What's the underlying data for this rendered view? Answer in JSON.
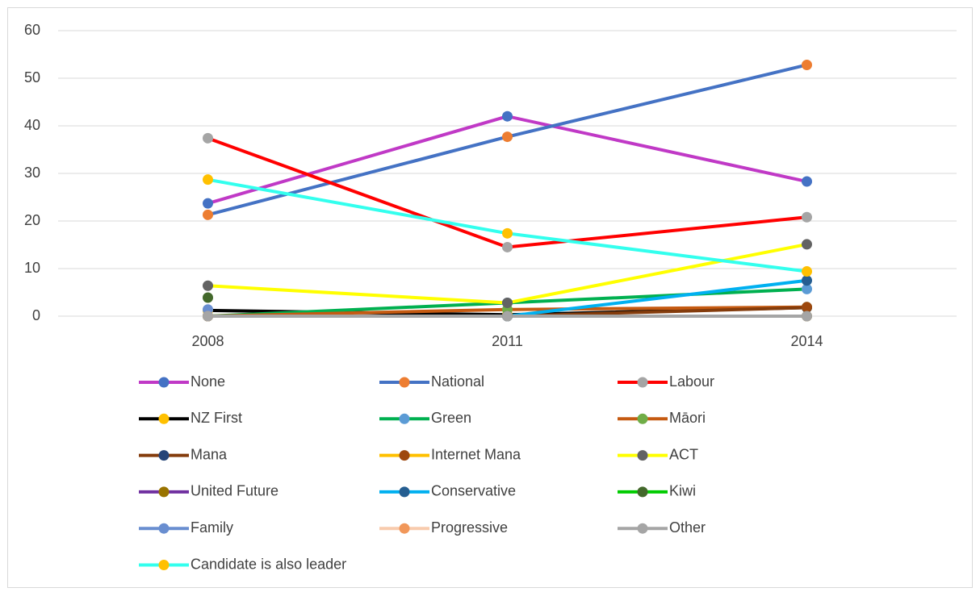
{
  "chart_data": {
    "type": "line",
    "categories": [
      "2008",
      "2011",
      "2014"
    ],
    "ylim": [
      0,
      60
    ],
    "yticks": [
      0,
      10,
      20,
      30,
      40,
      50,
      60
    ],
    "grid": true,
    "legend": "bottom",
    "series": [
      {
        "name": "None",
        "color": "#c039c6",
        "marker_color": "#4472c4",
        "values": [
          23.7,
          42.0,
          28.3
        ]
      },
      {
        "name": "National",
        "color": "#4472c4",
        "marker_color": "#ed7d31",
        "values": [
          21.3,
          37.7,
          52.8
        ]
      },
      {
        "name": "Labour",
        "color": "#ff0000",
        "marker_color": "#a5a5a5",
        "values": [
          37.4,
          14.5,
          20.8
        ]
      },
      {
        "name": "NZ First",
        "color": "#000000",
        "marker_color": "#ffc000",
        "values": [
          1.2,
          0.3,
          1.8
        ]
      },
      {
        "name": "Green",
        "color": "#00b050",
        "marker_color": "#5b9bd5",
        "values": [
          0,
          2.8,
          5.7
        ]
      },
      {
        "name": "Māori",
        "color": "#c55a11",
        "marker_color": "#70ad47",
        "values": [
          0,
          1.4,
          1.9
        ]
      },
      {
        "name": "Mana",
        "color": "#843c0c",
        "marker_color": "#264478",
        "values": [
          0,
          0,
          1.8
        ]
      },
      {
        "name": "Internet Mana",
        "color": "#ffc000",
        "marker_color": "#9e480e",
        "values": [
          null,
          null,
          1.9
        ]
      },
      {
        "name": "ACT",
        "color": "#ffff00",
        "marker_color": "#636363",
        "values": [
          6.4,
          2.8,
          15.1
        ]
      },
      {
        "name": "United Future",
        "color": "#7030a0",
        "marker_color": "#997300",
        "values": [
          0,
          0,
          0
        ]
      },
      {
        "name": "Conservative",
        "color": "#00b0f0",
        "marker_color": "#255e91",
        "values": [
          null,
          0,
          7.5
        ]
      },
      {
        "name": "Kiwi",
        "color": "#00cc00",
        "marker_color": "#43682b",
        "values": [
          3.9,
          null,
          null
        ]
      },
      {
        "name": "Family",
        "color": "#698ed0",
        "marker_color": "#698ed0",
        "values": [
          1.4,
          null,
          null
        ]
      },
      {
        "name": "Progressive",
        "color": "#f8cbad",
        "marker_color": "#f1975a",
        "values": [
          0,
          null,
          null
        ]
      },
      {
        "name": "Other",
        "color": "#a5a5a5",
        "marker_color": "#a5a5a5",
        "values": [
          0,
          0,
          0
        ]
      },
      {
        "name": "Candidate is also leader",
        "color": "#33ffee",
        "marker_color": "#ffc000",
        "values": [
          28.7,
          17.4,
          9.4
        ]
      }
    ]
  }
}
